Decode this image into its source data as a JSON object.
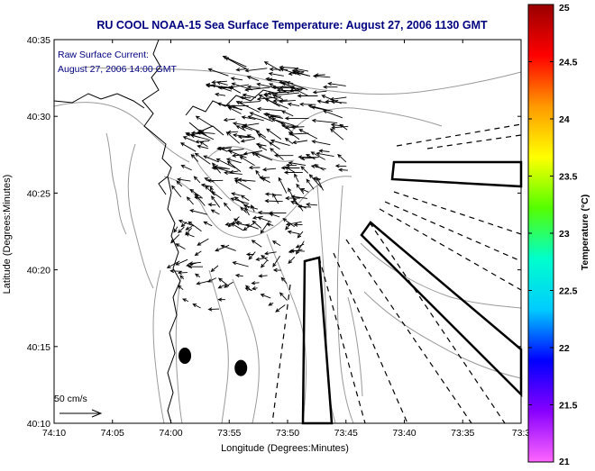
{
  "chart_data": {
    "type": "vector-map",
    "title": "RU COOL  NOAA-15  Sea Surface Temperature:  August 27, 2006 1130 GMT",
    "annotation_lines": [
      "Raw Surface Current:",
      "August 27, 2006 14:00 GMT"
    ],
    "xlabel": "Longitude (Degrees:Minutes)",
    "ylabel": "Latitude (Degrees:Minutes)",
    "x_ticks": [
      {
        "value": -74.16667,
        "label": "74:10"
      },
      {
        "value": -74.08333,
        "label": "74:05"
      },
      {
        "value": -74.0,
        "label": "74:00"
      },
      {
        "value": -73.91667,
        "label": "73:55"
      },
      {
        "value": -73.83333,
        "label": "73:50"
      },
      {
        "value": -73.75,
        "label": "73:45"
      },
      {
        "value": -73.66667,
        "label": "73:40"
      },
      {
        "value": -73.58333,
        "label": "73:35"
      },
      {
        "value": -73.5,
        "label": "73:3"
      }
    ],
    "y_ticks": [
      {
        "value": 40.16667,
        "label": "40:10"
      },
      {
        "value": 40.25,
        "label": "40:15"
      },
      {
        "value": 40.33333,
        "label": "40:20"
      },
      {
        "value": 40.41667,
        "label": "40:25"
      },
      {
        "value": 40.5,
        "label": "40:30"
      },
      {
        "value": 40.58333,
        "label": "40:35"
      }
    ],
    "xlim": [
      -74.16667,
      -73.5
    ],
    "ylim": [
      40.16667,
      40.58333
    ],
    "scale_label": "50 cm/s",
    "colorbar": {
      "label": "Temperature (°C)",
      "min": 21,
      "max": 25,
      "ticks": [
        "21",
        "21.5",
        "22",
        "22.5",
        "23",
        "23.5",
        "24",
        "24.5",
        "25"
      ],
      "colors": [
        "#ff66ff",
        "#8800ff",
        "#0000ff",
        "#00ccff",
        "#00ffcc",
        "#55ff00",
        "#ffff00",
        "#ff9900",
        "#ff0000",
        "#990000"
      ]
    },
    "markers": [
      {
        "lon": -73.98,
        "lat": 40.24
      },
      {
        "lon": -73.9,
        "lat": 40.2267
      }
    ],
    "colors": {
      "title": "#000080",
      "annotation": "#000080",
      "contour": "#999999",
      "coast": "#000000",
      "arrow": "#000000"
    }
  }
}
